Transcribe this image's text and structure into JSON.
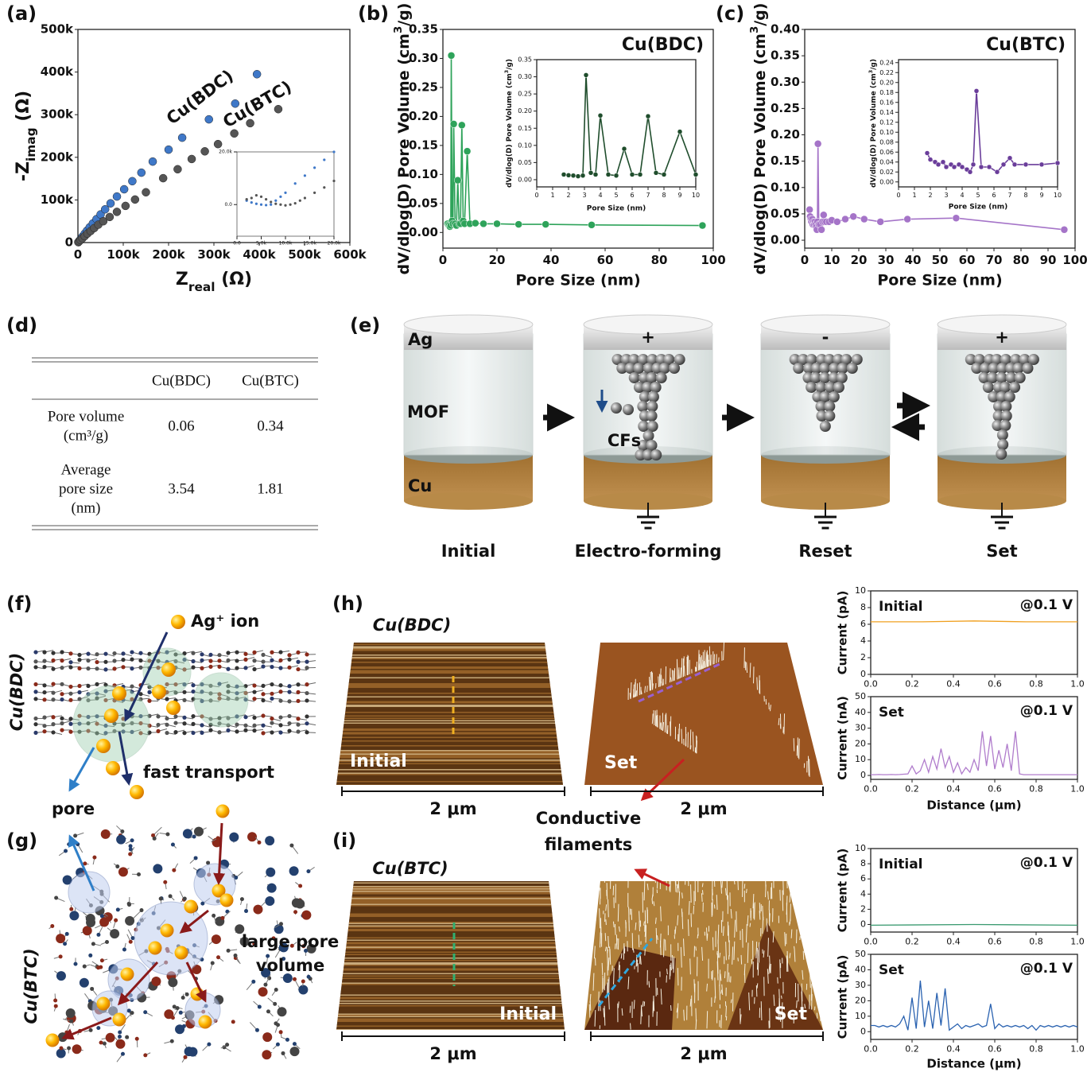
{
  "panel_labels": [
    "(a)",
    "(b)",
    "(c)",
    "(d)",
    "(e)",
    "(f)",
    "(g)",
    "(h)",
    "(i)"
  ],
  "chart_data": [
    {
      "type": "scatter",
      "xlim": [
        0,
        600000
      ],
      "ylim": [
        0,
        500000
      ],
      "xticks": [
        0,
        {
          "value": 100000,
          "label": "100k"
        },
        {
          "value": 200000,
          "label": "200k"
        },
        {
          "value": 300000,
          "label": "300k"
        },
        {
          "value": 400000,
          "label": "400k"
        },
        {
          "value": 500000,
          "label": "500k"
        },
        {
          "value": 600000,
          "label": "600k"
        }
      ],
      "yticks": [
        0,
        {
          "value": 100000,
          "label": "100k"
        },
        {
          "value": 200000,
          "label": "200k"
        },
        {
          "value": 300000,
          "label": "300k"
        },
        {
          "value": 400000,
          "label": "400k"
        },
        {
          "value": 500000,
          "label": "500k"
        }
      ],
      "xlabel": [
        "Z",
        "real",
        " (Ω)"
      ],
      "xlabel_script": "sub",
      "ylabel": [
        "-Z",
        "imag",
        " (Ω)"
      ],
      "ylabel_script": "sub",
      "series": [
        {
          "name": "Cu(BDC)",
          "color": "#3f78c8",
          "x": [
            1000,
            3000,
            6000,
            10000,
            15000,
            20000,
            26000,
            33000,
            41000,
            50000,
            60000,
            72000,
            86000,
            102000,
            120000,
            140000,
            165000,
            200000,
            230000,
            289000,
            347000,
            395000
          ],
          "values": [
            1000,
            4000,
            8000,
            14000,
            21000,
            28000,
            36000,
            45000,
            55000,
            66000,
            78000,
            92000,
            108000,
            125000,
            144000,
            164000,
            190000,
            218000,
            246000,
            289000,
            326000,
            395000
          ]
        },
        {
          "name": "Cu(BTC)",
          "color": "#555555",
          "x": [
            1000,
            3000,
            6000,
            10000,
            15000,
            21000,
            28000,
            36000,
            45000,
            56000,
            70000,
            86000,
            105000,
            126000,
            150000,
            188000,
            220000,
            251000,
            280000,
            309000,
            345000,
            380000,
            442000
          ],
          "values": [
            1000,
            3000,
            6000,
            10000,
            15000,
            21000,
            27000,
            34000,
            42000,
            50000,
            60000,
            72000,
            86000,
            101000,
            118000,
            151000,
            172000,
            196000,
            214000,
            231000,
            256000,
            280000,
            313000
          ]
        }
      ]
    },
    {
      "type": "scatter",
      "xlim": [
        0,
        20000
      ],
      "ylim": [
        -12000,
        20000
      ],
      "xticks": [
        {
          "value": 0,
          "label": "0.0"
        },
        {
          "value": 5000,
          "label": "5.0k"
        },
        {
          "value": 10000,
          "label": "10.0k"
        },
        {
          "value": 15000,
          "label": "15.0k"
        },
        {
          "value": 20000,
          "label": "20.0k"
        }
      ],
      "yticks": [
        {
          "value": 0,
          "label": "0.0"
        },
        {
          "value": 20000,
          "label": "20.0k"
        }
      ],
      "series": [
        {
          "color": "#3f78c8",
          "x": [
            2000,
            3000,
            4000,
            5000,
            6000,
            7000,
            8000,
            9000,
            10000,
            12000,
            14000,
            16000,
            18000,
            20000
          ],
          "values": [
            1500,
            800,
            300,
            0,
            -200,
            0,
            1500,
            3000,
            4500,
            8000,
            11000,
            14000,
            17000,
            20000
          ]
        },
        {
          "color": "#555555",
          "x": [
            2000,
            3000,
            4000,
            5000,
            6000,
            7000,
            8000,
            9000,
            10000,
            11000,
            12000,
            13000,
            14000,
            16000,
            18000,
            20000
          ],
          "values": [
            2000,
            2500,
            3500,
            3000,
            2000,
            1000,
            300,
            0,
            -300,
            0,
            500,
            1500,
            2500,
            4500,
            6500,
            9000
          ]
        }
      ]
    },
    {
      "type": "line",
      "title": "Cu(BDC)",
      "markers": true,
      "xlim": [
        0,
        100
      ],
      "ylim": [
        -0.027,
        0.35
      ],
      "xticks": [
        0,
        20,
        40,
        60,
        80,
        100
      ],
      "yticks": [
        {
          "value": 0,
          "label": "0.00"
        },
        0.05,
        {
          "value": 0.1,
          "label": "0.10"
        },
        0.15,
        {
          "value": 0.2,
          "label": "0.20"
        },
        0.25,
        {
          "value": 0.3,
          "label": "0.30"
        },
        0.35
      ],
      "xlabel": "Pore Size (nm)",
      "ylabel": [
        "dV/dlog(D) Pore Volume (cm",
        "3",
        "/g)"
      ],
      "ylabel_script": "super",
      "x": [
        1.7,
        2.0,
        2.3,
        2.6,
        2.9,
        3.1,
        3.4,
        3.7,
        4.0,
        4.5,
        5.0,
        5.5,
        6.0,
        6.5,
        7.0,
        7.5,
        8.0,
        9.0,
        10.0,
        12,
        15,
        20,
        28,
        38,
        55,
        96
      ],
      "series": [
        {
          "color": "#2ea35a",
          "values": [
            0.015,
            0.013,
            0.012,
            0.01,
            0.012,
            0.305,
            0.02,
            0.015,
            0.187,
            0.015,
            0.012,
            0.09,
            0.015,
            0.015,
            0.185,
            0.02,
            0.015,
            0.14,
            0.015,
            0.016,
            0.015,
            0.015,
            0.014,
            0.014,
            0.013,
            0.012
          ]
        }
      ]
    },
    {
      "type": "line",
      "markers": true,
      "xlim": [
        0,
        10
      ],
      "ylim": [
        -0.021,
        0.35
      ],
      "xticks": [
        0,
        1,
        2,
        3,
        4,
        5,
        6,
        7,
        8,
        9,
        10
      ],
      "yticks": [
        {
          "value": 0,
          "label": "0.00"
        },
        0.05,
        {
          "value": 0.1,
          "label": "0.10"
        },
        0.15,
        {
          "value": 0.2,
          "label": "0.20"
        },
        0.25,
        {
          "value": 0.3,
          "label": "0.30"
        },
        0.35
      ],
      "xlabel": "Pore Size (nm)",
      "ylabel": [
        "dV/dlog(D) Pore Volume (cm",
        "3",
        "/g)"
      ],
      "ylabel_script": "super",
      "x": [
        1.7,
        2.0,
        2.3,
        2.6,
        2.9,
        3.1,
        3.4,
        3.7,
        4.0,
        4.5,
        5.0,
        5.5,
        6.0,
        6.5,
        7.0,
        7.5,
        8.0,
        9.0,
        10.0
      ],
      "series": [
        {
          "color": "#1f4d2c",
          "values": [
            0.015,
            0.013,
            0.012,
            0.01,
            0.012,
            0.305,
            0.02,
            0.015,
            0.187,
            0.015,
            0.012,
            0.09,
            0.015,
            0.015,
            0.185,
            0.02,
            0.015,
            0.14,
            0.015
          ]
        }
      ]
    },
    {
      "type": "line",
      "title": "Cu(BTC)",
      "markers": true,
      "xlim": [
        0,
        100
      ],
      "ylim": [
        -0.015,
        0.4
      ],
      "xticks": [
        0,
        10,
        20,
        30,
        40,
        50,
        60,
        70,
        80,
        90,
        100
      ],
      "yticks": [
        {
          "value": 0,
          "label": "0.00"
        },
        0.05,
        {
          "value": 0.1,
          "label": "0.10"
        },
        0.15,
        {
          "value": 0.2,
          "label": "0.20"
        },
        0.25,
        {
          "value": 0.3,
          "label": "0.30"
        },
        0.35,
        {
          "value": 0.4,
          "label": "0.40"
        }
      ],
      "xlabel": "Pore Size (nm)",
      "ylabel": [
        "dV/dlog(D) Pore Volume (cm",
        "3",
        "/g)"
      ],
      "ylabel_script": "super",
      "x": [
        1.8,
        2.0,
        2.3,
        2.5,
        2.8,
        3.0,
        3.3,
        3.5,
        3.8,
        4.0,
        4.3,
        4.5,
        4.7,
        4.9,
        5.2,
        5.7,
        6.2,
        6.6,
        7.0,
        7.3,
        8.0,
        9.0,
        10.0,
        12,
        15,
        18,
        22,
        28,
        38,
        56,
        96
      ],
      "series": [
        {
          "color": "#a574c8",
          "values": [
            0.058,
            0.045,
            0.04,
            0.035,
            0.04,
            0.03,
            0.035,
            0.03,
            0.035,
            0.03,
            0.025,
            0.02,
            0.035,
            0.183,
            0.03,
            0.03,
            0.02,
            0.035,
            0.048,
            0.035,
            0.035,
            0.035,
            0.038,
            0.035,
            0.04,
            0.045,
            0.04,
            0.035,
            0.04,
            0.042,
            0.02
          ]
        }
      ]
    },
    {
      "type": "line",
      "markers": true,
      "xlim": [
        0,
        10
      ],
      "ylim": [
        -0.01,
        0.246
      ],
      "xticks": [
        0,
        1,
        2,
        3,
        4,
        5,
        6,
        7,
        8,
        9,
        10
      ],
      "yticks": [
        {
          "value": 0,
          "label": "0.00"
        },
        0.02,
        0.04,
        0.06,
        0.08,
        {
          "value": 0.1,
          "label": "0.10"
        },
        0.12,
        0.14,
        0.16,
        0.18,
        {
          "value": 0.2,
          "label": "0.20"
        },
        0.22,
        0.24
      ],
      "xlabel": "Pore Size (nm)",
      "ylabel": [
        "dV/dlog(D) Pore Volume (cm",
        "3",
        "/g)"
      ],
      "ylabel_script": "super",
      "x": [
        1.8,
        2.0,
        2.3,
        2.5,
        2.8,
        3.0,
        3.3,
        3.5,
        3.8,
        4.0,
        4.3,
        4.5,
        4.7,
        4.9,
        5.2,
        5.7,
        6.2,
        6.6,
        7.0,
        7.3,
        8.0,
        9.0,
        10.0
      ],
      "series": [
        {
          "color": "#6a3d9a",
          "values": [
            0.058,
            0.045,
            0.04,
            0.035,
            0.04,
            0.03,
            0.035,
            0.03,
            0.035,
            0.03,
            0.025,
            0.02,
            0.035,
            0.183,
            0.03,
            0.03,
            0.02,
            0.035,
            0.048,
            0.035,
            0.035,
            0.035,
            0.038
          ]
        }
      ]
    },
    {
      "type": "line",
      "label": "Initial",
      "condition": "@0.1 V",
      "xlim": [
        0,
        1
      ],
      "ylim": [
        0,
        10
      ],
      "xticks": [
        {
          "value": 0,
          "label": "0.0"
        },
        0.2,
        0.4,
        0.6,
        0.8,
        {
          "value": 1,
          "label": "1.0"
        }
      ],
      "yticks": [
        0,
        2,
        4,
        6,
        8,
        10
      ],
      "ylabel": "Current (pA)",
      "x": [
        0,
        0.25,
        0.5,
        0.75,
        1.0
      ],
      "series": [
        {
          "color": "#f0a020",
          "values": [
            6.3,
            6.3,
            6.4,
            6.3,
            6.3
          ]
        }
      ]
    },
    {
      "type": "line",
      "label": "Set",
      "condition": "@0.1 V",
      "xlim": [
        0,
        1
      ],
      "ylim": [
        -2.5,
        50
      ],
      "xticks": [
        {
          "value": 0,
          "label": "0.0"
        },
        0.2,
        0.4,
        0.6,
        0.8,
        {
          "value": 1,
          "label": "1.0"
        }
      ],
      "yticks": [
        0,
        10,
        20,
        30,
        40,
        50
      ],
      "ylabel": "Current (nA)",
      "xlabel": "Distance (μm)",
      "x": [
        0,
        0.02,
        0.04,
        0.06,
        0.08,
        0.1,
        0.12,
        0.14,
        0.16,
        0.18,
        0.2,
        0.22,
        0.24,
        0.26,
        0.28,
        0.3,
        0.32,
        0.34,
        0.36,
        0.38,
        0.4,
        0.42,
        0.44,
        0.46,
        0.48,
        0.5,
        0.52,
        0.54,
        0.56,
        0.58,
        0.6,
        0.62,
        0.64,
        0.66,
        0.68,
        0.7,
        0.72,
        0.74,
        0.76,
        0.78,
        0.8,
        0.82,
        0.84,
        0.86,
        0.88,
        0.9,
        0.92,
        0.94,
        0.96,
        0.98,
        1.0
      ],
      "series": [
        {
          "color": "#b07ccc",
          "values": [
            0.5,
            0.5,
            0.6,
            0.5,
            0.5,
            0.6,
            0.5,
            0.6,
            0.8,
            1,
            6,
            1,
            3,
            10,
            2,
            12,
            4,
            17,
            5,
            12,
            2,
            8,
            1,
            5,
            2,
            10,
            3,
            28,
            6,
            25,
            4,
            16,
            5,
            20,
            3,
            28,
            1,
            0.5,
            0.5,
            0.5,
            0.5,
            0.5,
            0.5,
            0.5,
            0.5,
            0.5,
            0.5,
            0.5,
            0.5,
            0.5,
            0.5
          ]
        }
      ]
    },
    {
      "type": "line",
      "label": "Initial",
      "condition": "@0.1 V",
      "xlim": [
        0,
        1
      ],
      "ylim": [
        -1,
        10
      ],
      "xticks": [
        {
          "value": 0,
          "label": "0.0"
        },
        0.2,
        0.4,
        0.6,
        0.8,
        {
          "value": 1,
          "label": "1.0"
        }
      ],
      "yticks": [
        0,
        2,
        4,
        6,
        8,
        10
      ],
      "ylabel": "Current (pA)",
      "x": [
        0,
        0.5,
        1.0
      ],
      "series": [
        {
          "color": "#3a9a70",
          "values": [
            -0.1,
            0,
            -0.1
          ]
        }
      ]
    },
    {
      "type": "line",
      "label": "Set",
      "condition": "@0.1 V",
      "xlim": [
        0,
        1
      ],
      "ylim": [
        -5,
        50
      ],
      "xticks": [
        {
          "value": 0,
          "label": "0.0"
        },
        0.2,
        0.4,
        0.6,
        0.8,
        {
          "value": 1,
          "label": "1.0"
        }
      ],
      "yticks": [
        0,
        10,
        20,
        30,
        40,
        50
      ],
      "ylabel": "Current (pA)",
      "xlabel": "Distance (μm)",
      "x": [
        0,
        0.02,
        0.04,
        0.06,
        0.08,
        0.1,
        0.12,
        0.14,
        0.16,
        0.18,
        0.2,
        0.22,
        0.24,
        0.26,
        0.28,
        0.3,
        0.32,
        0.34,
        0.36,
        0.38,
        0.4,
        0.42,
        0.44,
        0.46,
        0.48,
        0.5,
        0.52,
        0.54,
        0.56,
        0.58,
        0.6,
        0.62,
        0.64,
        0.66,
        0.68,
        0.7,
        0.72,
        0.74,
        0.76,
        0.78,
        0.8,
        0.82,
        0.84,
        0.86,
        0.88,
        0.9,
        0.92,
        0.94,
        0.96,
        0.98,
        1.0
      ],
      "series": [
        {
          "color": "#2a62b0",
          "values": [
            4,
            4,
            3,
            4,
            3,
            4,
            3,
            5,
            10,
            1,
            22,
            2,
            33,
            3,
            20,
            2,
            25,
            4,
            28,
            1,
            3,
            5,
            2,
            4,
            3,
            4,
            5,
            3,
            4,
            18,
            2,
            5,
            3,
            4,
            3,
            4,
            3,
            4,
            2,
            4,
            1,
            4,
            3,
            4,
            3,
            4,
            3,
            4,
            3,
            4,
            3
          ]
        }
      ]
    }
  ],
  "table": {
    "columns": [
      "Cu(BDC)",
      "Cu(BTC)"
    ],
    "rows": [
      {
        "label": [
          "Pore volume",
          "(cm³/g)"
        ],
        "values": [
          0.06,
          0.34
        ]
      },
      {
        "label": [
          "Average",
          "pore size",
          "(nm)"
        ],
        "values": [
          3.54,
          1.81
        ]
      }
    ]
  },
  "schematic": {
    "layers": [
      "Ag",
      "MOF",
      "Cu"
    ],
    "filament_label": "CFs",
    "states": [
      {
        "name": "Initial"
      },
      {
        "name": "Electro-forming",
        "bias": "+"
      },
      {
        "name": "Reset",
        "bias": "-"
      },
      {
        "name": "Set",
        "bias": "+"
      }
    ]
  },
  "structures": {
    "bdc": {
      "name": "Cu(BDC)",
      "ion": "Ag⁺ ion",
      "transport": "fast transport",
      "pore": "pore"
    },
    "btc": {
      "name": "Cu(BTC)",
      "pore": [
        "large pore",
        "volume"
      ]
    }
  },
  "afm": {
    "h": {
      "material": "Cu(BDC)",
      "left": "Initial",
      "right": "Set",
      "scale": "2 μm",
      "arrow": [
        "Conductive",
        "filaments"
      ]
    },
    "i": {
      "material": "Cu(BTC)",
      "left": "Initial",
      "right": "Set",
      "scale": "2 μm"
    }
  }
}
